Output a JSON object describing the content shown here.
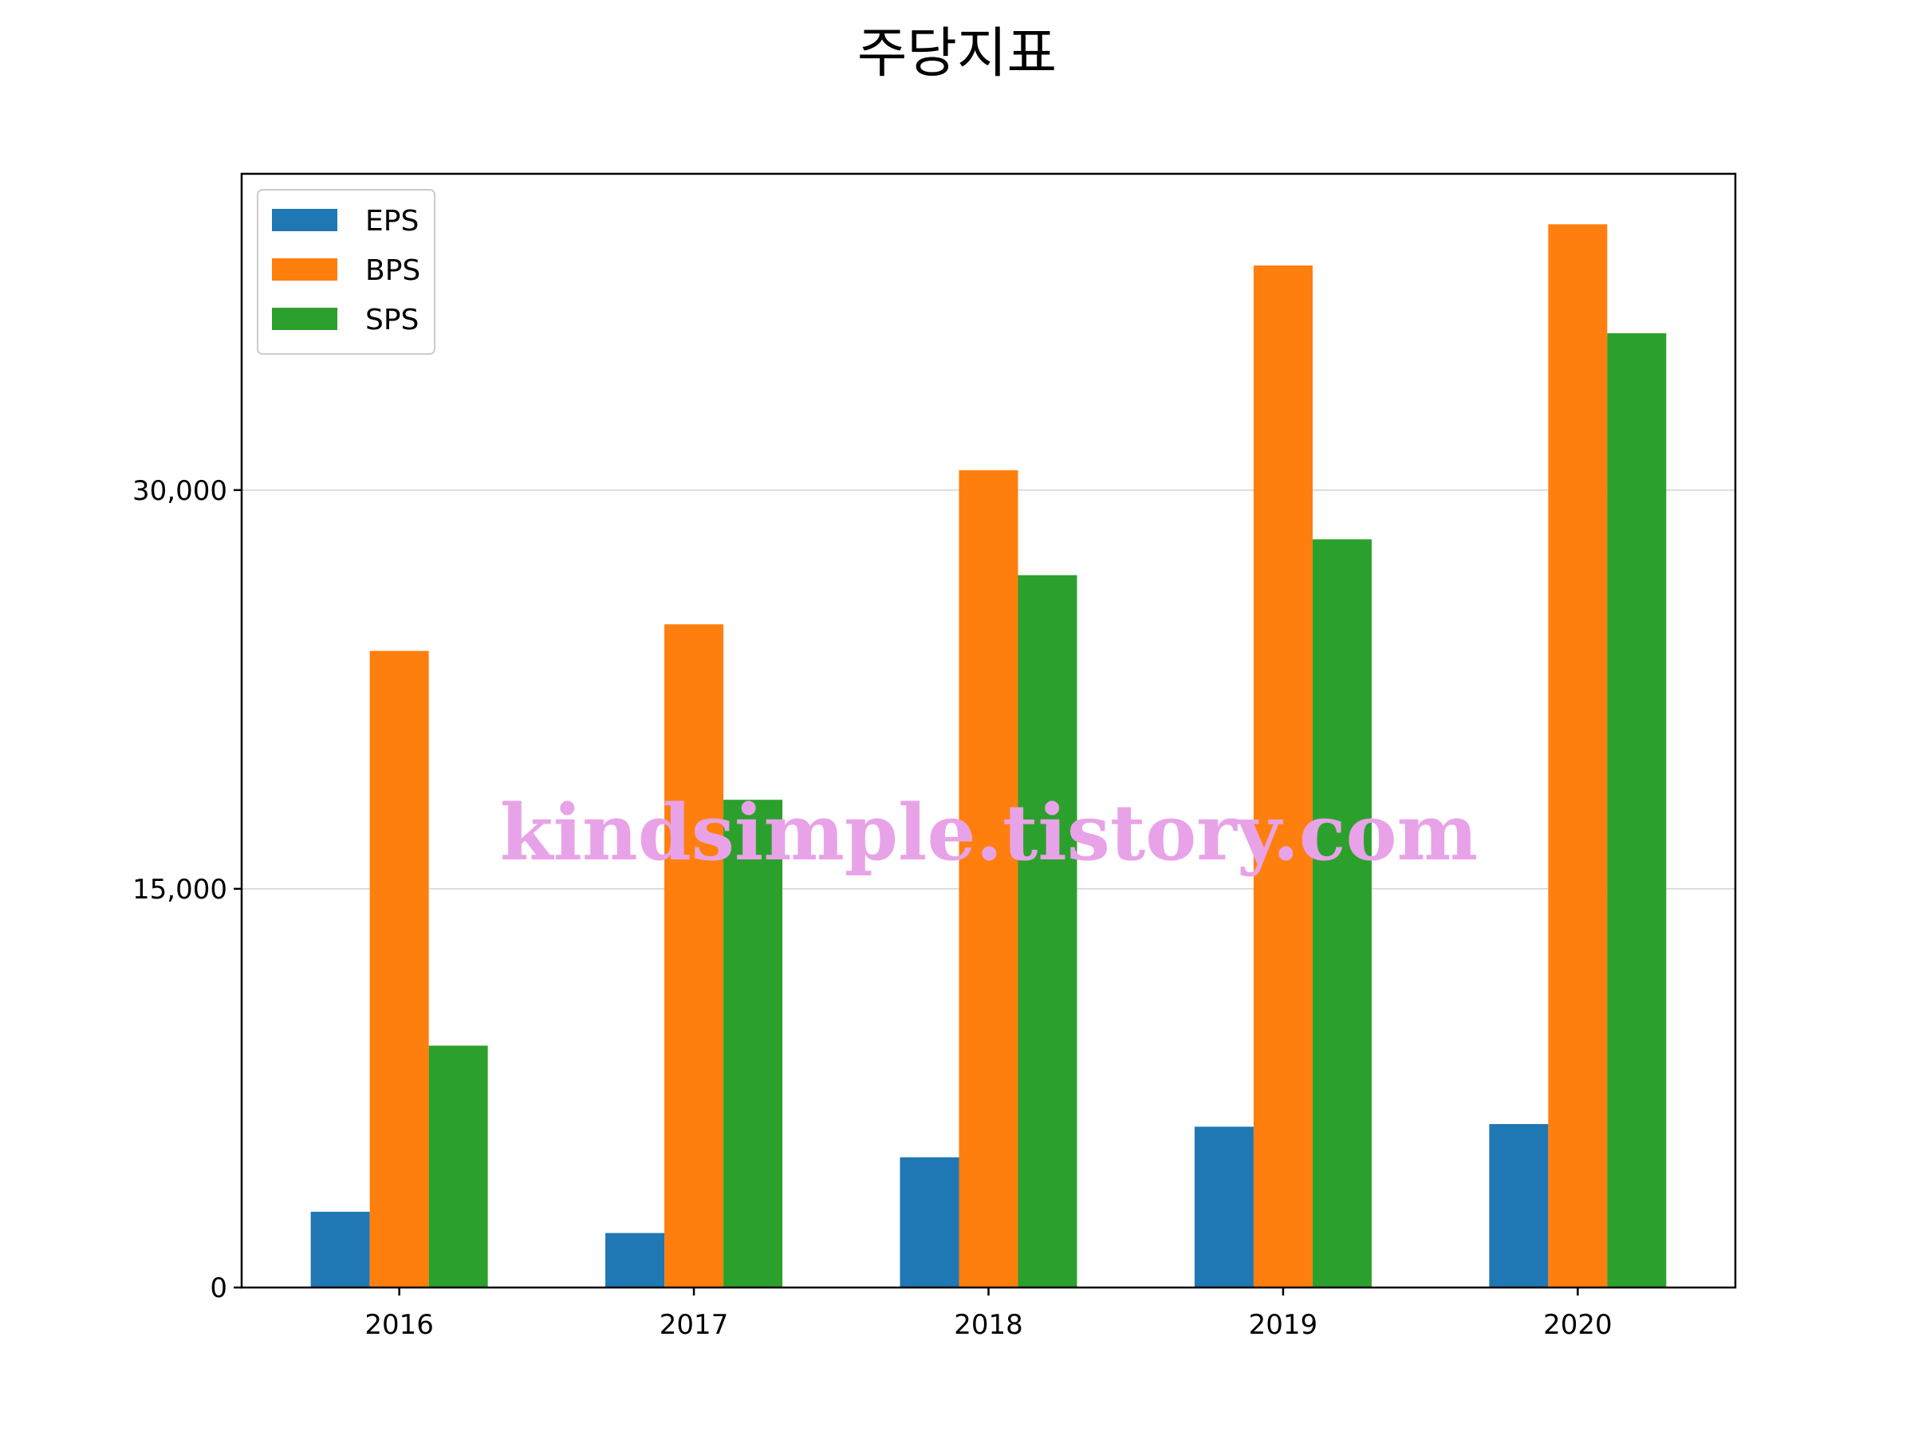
{
  "chart_data": {
    "type": "bar",
    "title": "주당지표",
    "categories": [
      "2016",
      "2017",
      "2018",
      "2019",
      "2020"
    ],
    "series": [
      {
        "name": "EPS",
        "color": "#1f77b4",
        "values": [
          2850,
          2050,
          4900,
          6050,
          6150
        ]
      },
      {
        "name": "BPS",
        "color": "#ff7f0e",
        "values": [
          23950,
          24950,
          30750,
          38450,
          40000
        ]
      },
      {
        "name": "SPS",
        "color": "#2ca02c",
        "values": [
          9100,
          18350,
          26800,
          28150,
          35900
        ]
      }
    ],
    "yticks": [
      0,
      15000,
      30000
    ],
    "ytick_labels": [
      "0",
      "15,000",
      "30,000"
    ],
    "ylim": [
      0,
      41900
    ],
    "grid": "y-axis",
    "legend": "top-left",
    "xlabel": "",
    "ylabel": ""
  },
  "watermark": "kindsimple.tistory.com"
}
